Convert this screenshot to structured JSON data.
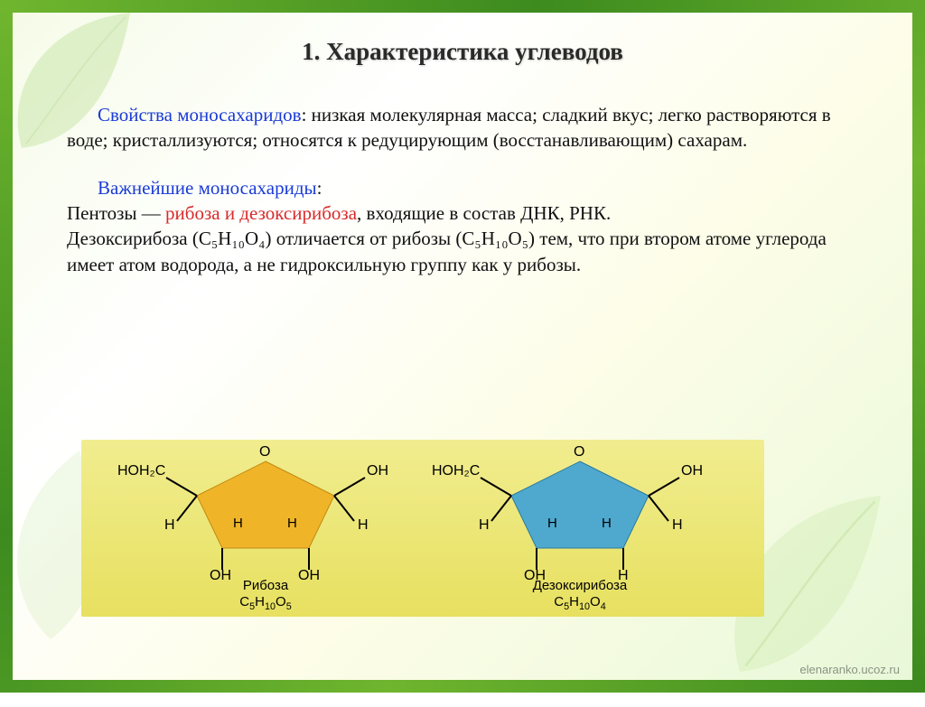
{
  "title": "1. Характеристика углеводов",
  "para1": {
    "lead": "Свойства моносахаридов",
    "rest": ": низкая молекулярная масса; сладкий вкус; легко растворяются в воде; кристаллизуются; относятся к редуцирующим (восстанавливающим) сахарам."
  },
  "para2": {
    "lead": "Важнейшие моносахариды",
    "line2a": "Пентозы — ",
    "line2b": "рибоза и дезоксирибоза",
    "line2c": ", входящие в состав ДНК, РНК.",
    "line3": "Дезоксирибоза (C₅H₁₀O₄) отличается от рибозы (C₅H₁₀O₅) тем, что при втором атоме углерода имеет атом водорода, а не гидроксильную группу как у рибозы."
  },
  "molecules": {
    "ribose": {
      "name": "Рибоза",
      "formula_html": "C<sub>5</sub>H<sub>10</sub>O<sub>5</sub>",
      "fill": "#f0b429",
      "stroke": "#c28a12",
      "labels": {
        "top": "O",
        "topL": "HOH₂C",
        "topR": "OH",
        "midL": "H",
        "midiL": "H",
        "midiR": "H",
        "midR": "H",
        "botL": "OH",
        "botR": "OH"
      }
    },
    "deoxy": {
      "name": "Дезоксирибоза",
      "formula_html": "C<sub>5</sub>H<sub>10</sub>O<sub>4</sub>",
      "fill": "#4fa9cf",
      "stroke": "#2e7a9c",
      "labels": {
        "top": "O",
        "topL": "HOH₂C",
        "topR": "OH",
        "midL": "H",
        "midiL": "H",
        "midiR": "H",
        "midR": "H",
        "botL": "OH",
        "botR": "H"
      }
    }
  },
  "colors": {
    "band_bg": "#ece57a",
    "frame_green": "#4d9b23"
  },
  "watermark": "elenaranko.ucoz.ru"
}
